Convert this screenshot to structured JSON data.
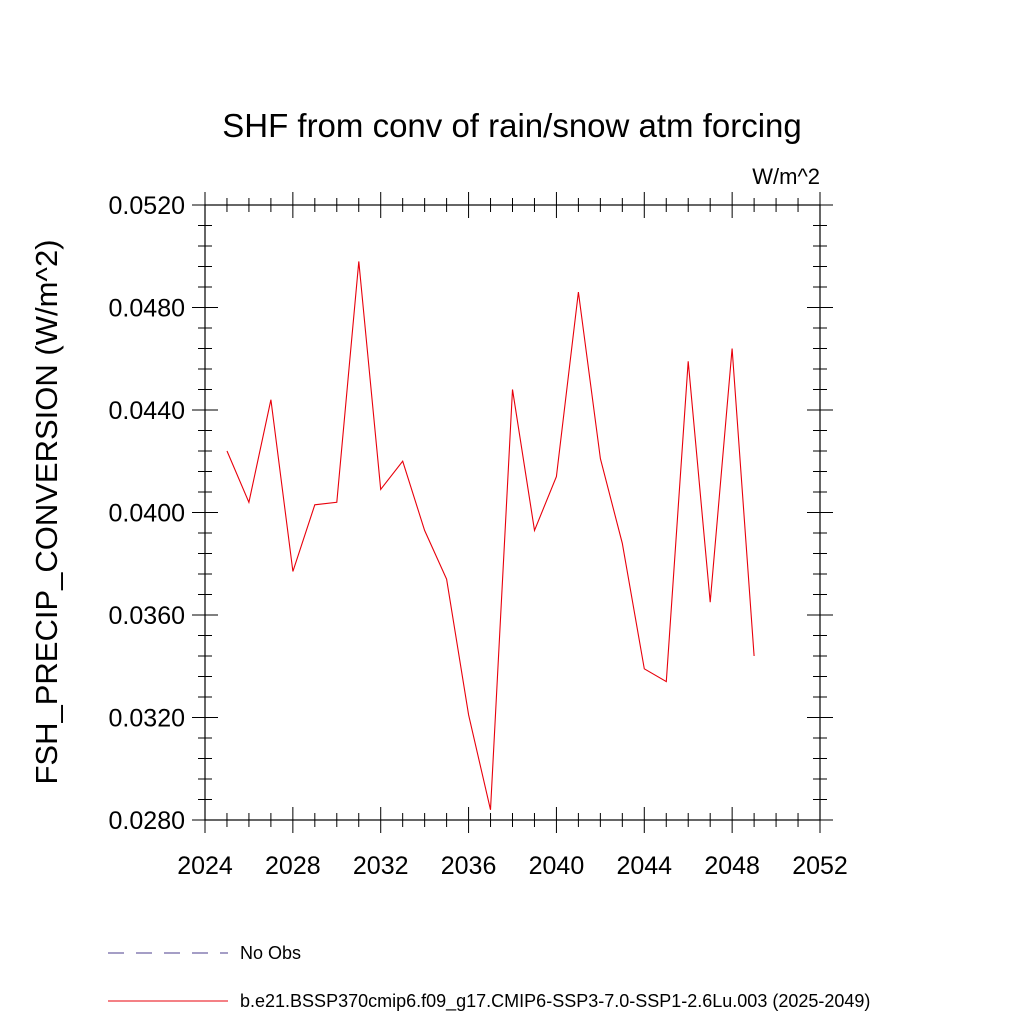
{
  "chart_data": {
    "type": "line",
    "title": "SHF from conv of rain/snow atm forcing",
    "units_label": "W/m^2",
    "xlabel": "",
    "ylabel": "FSH_PRECIP_CONVERSION  (W/m^2)",
    "xlim": [
      2024,
      2052
    ],
    "ylim": [
      0.028,
      0.052
    ],
    "x_ticks": [
      "2024",
      "2028",
      "2032",
      "2036",
      "2040",
      "2044",
      "2048",
      "2052"
    ],
    "y_ticks": [
      "0.0280",
      "0.0320",
      "0.0360",
      "0.0400",
      "0.0440",
      "0.0480",
      "0.0520"
    ],
    "grid": false,
    "series": [
      {
        "name": "b.e21.BSSP370cmip6.f09_g17.CMIP6-SSP3-7.0-SSP1-2.6Lu.003 (2025-2049)",
        "color": "#e8000b",
        "style": "solid",
        "x": [
          2025,
          2026,
          2027,
          2028,
          2029,
          2030,
          2031,
          2032,
          2033,
          2034,
          2035,
          2036,
          2037,
          2038,
          2039,
          2040,
          2041,
          2042,
          2043,
          2044,
          2045,
          2046,
          2047,
          2048,
          2049
        ],
        "y": [
          0.0424,
          0.0404,
          0.0444,
          0.0377,
          0.0403,
          0.0404,
          0.0498,
          0.0409,
          0.042,
          0.0393,
          0.0374,
          0.0321,
          0.0284,
          0.0448,
          0.0393,
          0.0414,
          0.0486,
          0.0421,
          0.0388,
          0.0339,
          0.0334,
          0.0459,
          0.0365,
          0.0464,
          0.0344
        ]
      }
    ],
    "legend": [
      {
        "name": "No Obs",
        "color": "#4b3c8c",
        "style": "dashed"
      },
      {
        "name": "b.e21.BSSP370cmip6.f09_g17.CMIP6-SSP3-7.0-SSP1-2.6Lu.003 (2025-2049)",
        "color": "#e8000b",
        "style": "solid"
      }
    ]
  }
}
